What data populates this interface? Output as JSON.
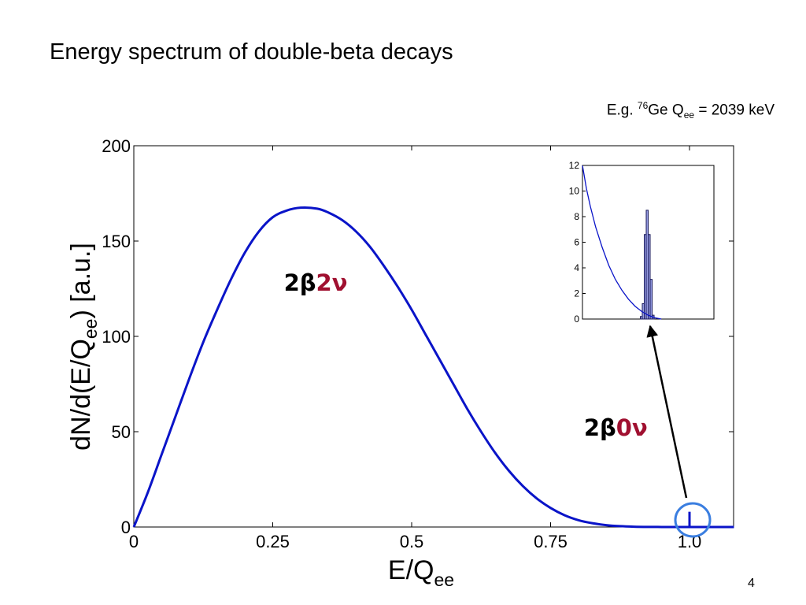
{
  "slide": {
    "title": "Energy spectrum of double-beta decays",
    "page_number": "4",
    "example": {
      "prefix": "E.g. ",
      "isotope_mass": "76",
      "isotope": "Ge Q",
      "q_subscript": "ee",
      "value": " = 2039 keV"
    }
  },
  "colors": {
    "curve": "#0a14c8",
    "annotation_accent": "#a01030",
    "circle": "#3a7ee0",
    "inset_bar_fill": "#9aa0e6",
    "inset_bar_stroke": "#1a1a5a"
  },
  "chart_data": [
    {
      "id": "main",
      "type": "line",
      "xlabel_main": "E/Q",
      "xlabel_sub": "ee",
      "ylabel_main": "dN/d(E/Q",
      "ylabel_sub": "ee",
      "ylabel_end": ") [a.u.]",
      "xlim": [
        0,
        1.08
      ],
      "ylim": [
        0,
        200
      ],
      "xticks": [
        {
          "value": 0,
          "label": "0"
        },
        {
          "value": 0.25,
          "label": "0.25"
        },
        {
          "value": 0.5,
          "label": "0.5"
        },
        {
          "value": 0.75,
          "label": "0.75"
        },
        {
          "value": 1.0,
          "label": "1.0"
        }
      ],
      "yticks": [
        {
          "value": 0,
          "label": "0"
        },
        {
          "value": 50,
          "label": "50"
        },
        {
          "value": 100,
          "label": "100"
        },
        {
          "value": 150,
          "label": "150"
        },
        {
          "value": 200,
          "label": "200"
        }
      ],
      "grid": false,
      "series": [
        {
          "x": [
            0,
            0.025,
            0.05,
            0.075,
            0.1,
            0.125,
            0.15,
            0.175,
            0.2,
            0.225,
            0.25,
            0.275,
            0.3,
            0.33,
            0.35,
            0.375,
            0.4,
            0.425,
            0.45,
            0.475,
            0.5,
            0.525,
            0.55,
            0.575,
            0.6,
            0.625,
            0.65,
            0.675,
            0.7,
            0.725,
            0.75,
            0.775,
            0.8,
            0.825,
            0.85,
            0.875,
            0.9,
            0.925,
            0.95,
            0.975,
            1.0,
            1.08
          ],
          "values": [
            0,
            18,
            38,
            58,
            78,
            97,
            114,
            130,
            144,
            155,
            162.5,
            166,
            167.5,
            167,
            165,
            161,
            155,
            147,
            137,
            126,
            114,
            101,
            88,
            75,
            62,
            50,
            39,
            29.5,
            21.5,
            15,
            10,
            6.2,
            3.6,
            2.0,
            1.0,
            0.45,
            0.18,
            0.06,
            0.02,
            0.005,
            0,
            0
          ]
        }
      ],
      "peak": {
        "x": 1.0,
        "height": 8
      },
      "annotations": [
        {
          "id": "two-neutrino",
          "prefix": "2β",
          "accent": "2ν",
          "x": 0.27,
          "y": 128
        },
        {
          "id": "neutrinoless",
          "prefix": "2β",
          "accent": "0ν",
          "x": 0.81,
          "y": 52
        }
      ]
    },
    {
      "id": "inset",
      "type": "bar",
      "xlim": [
        0,
        1
      ],
      "ylim": [
        0,
        12
      ],
      "yticks": [
        {
          "value": 0,
          "label": "0"
        },
        {
          "value": 2,
          "label": "2"
        },
        {
          "value": 4,
          "label": "4"
        },
        {
          "value": 6,
          "label": "6"
        },
        {
          "value": 8,
          "label": "8"
        },
        {
          "value": 10,
          "label": "10"
        },
        {
          "value": 12,
          "label": "12"
        }
      ],
      "curve": {
        "x": [
          0.0,
          0.03,
          0.06,
          0.1,
          0.15,
          0.2,
          0.25,
          0.3,
          0.35,
          0.4,
          0.45,
          0.5,
          0.55,
          0.6
        ],
        "values": [
          12,
          10.2,
          8.8,
          7.2,
          5.6,
          4.2,
          3.1,
          2.25,
          1.55,
          1.0,
          0.6,
          0.3,
          0.1,
          0
        ]
      },
      "bins": {
        "edges": [
          0.44,
          0.455,
          0.47,
          0.485,
          0.5,
          0.515,
          0.53,
          0.545
        ],
        "values": [
          0.2,
          1.2,
          6.6,
          8.5,
          6.6,
          3.1,
          0.3
        ]
      }
    }
  ]
}
